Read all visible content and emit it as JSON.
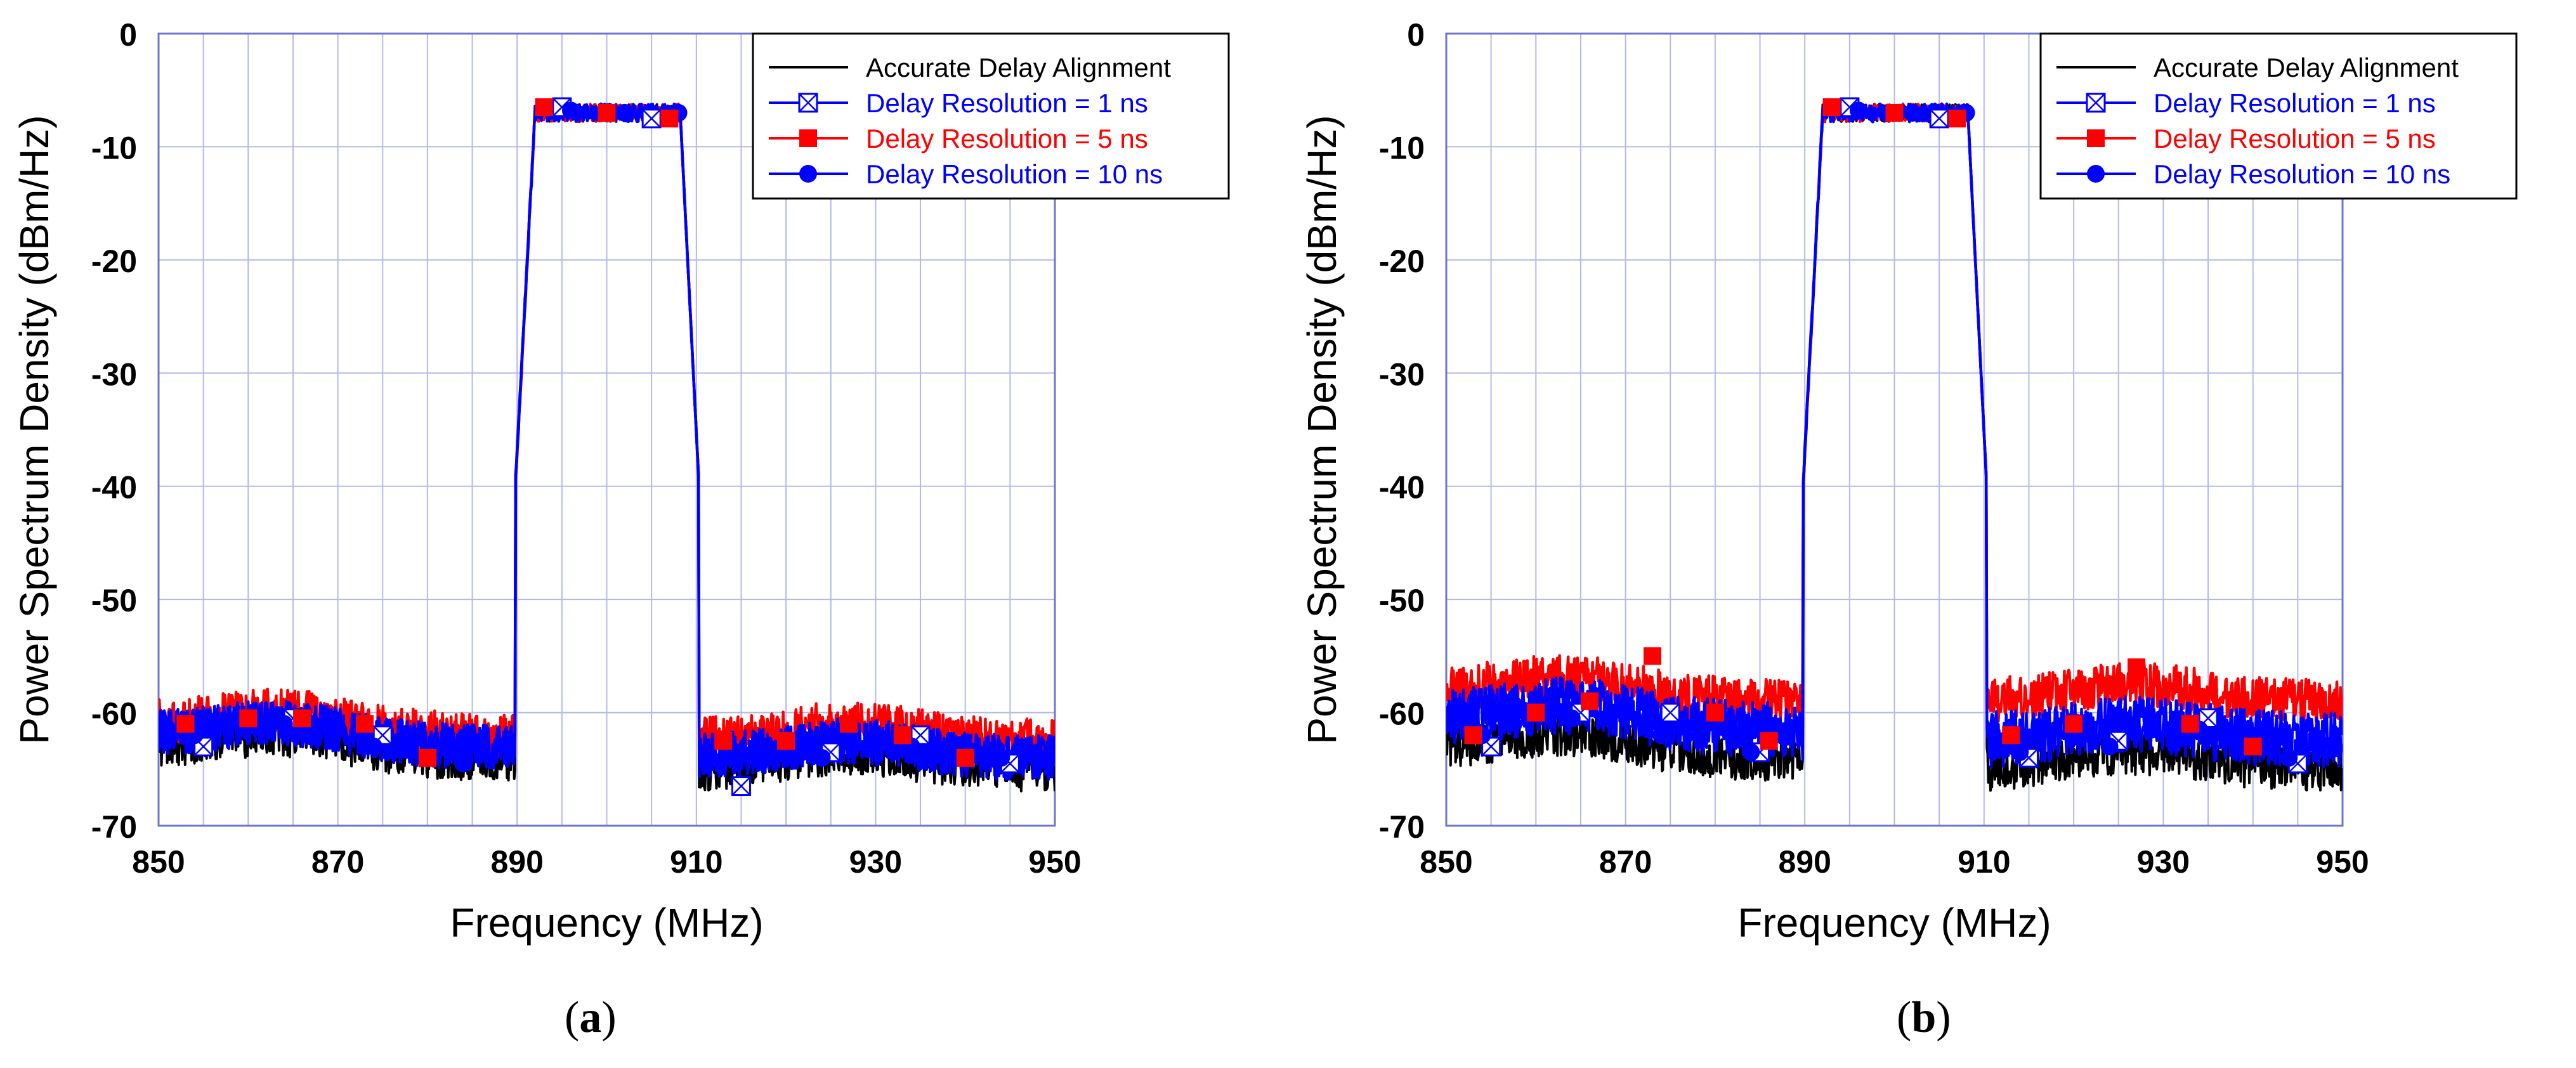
{
  "chart_data": [
    {
      "type": "line",
      "panel_label": "a",
      "xlabel": "Frequency (MHz)",
      "ylabel": "Power Spectrum Density (dBm/Hz)",
      "xlim": [
        850,
        950
      ],
      "ylim": [
        -70,
        0
      ],
      "xticks": [
        850,
        870,
        890,
        910,
        930,
        950
      ],
      "yticks": [
        0,
        -10,
        -20,
        -30,
        -40,
        -50,
        -60,
        -70
      ],
      "grid": true,
      "legend_position": "top-right",
      "passband_mhz": [
        890,
        910
      ],
      "passband_level_dbm_hz": -7,
      "series": [
        {
          "name": "Accurate Delay Alignment",
          "color": "#000000",
          "marker": "none",
          "lower_sideband_dbm_hz": -63,
          "upper_sideband_dbm_hz": -65
        },
        {
          "name": "Delay Resolution = 1 ns",
          "color": "#0000ff",
          "marker": "boxed-x",
          "lower_sideband_dbm_hz": -62,
          "upper_sideband_dbm_hz": -64,
          "markers": [
            [
              855,
              -63
            ],
            [
              865,
              -60.5
            ],
            [
              875,
              -62
            ],
            [
              895,
              -6.5
            ],
            [
              905,
              -7.5
            ],
            [
              915,
              -66.5
            ],
            [
              925,
              -63.5
            ],
            [
              935,
              -62
            ],
            [
              945,
              -64.5
            ]
          ]
        },
        {
          "name": "Delay Resolution = 5 ns",
          "color": "#ff0000",
          "marker": "square",
          "lower_sideband_dbm_hz": -61,
          "upper_sideband_dbm_hz": -62.5,
          "markers": [
            [
              853,
              -61
            ],
            [
              860,
              -60.5
            ],
            [
              866,
              -60.5
            ],
            [
              873,
              -61
            ],
            [
              880,
              -64
            ],
            [
              893,
              -6.5
            ],
            [
              900,
              -7
            ],
            [
              907,
              -7.5
            ],
            [
              913,
              -62.5
            ],
            [
              920,
              -62.5
            ],
            [
              927,
              -61
            ],
            [
              933,
              -62
            ],
            [
              940,
              -64
            ]
          ]
        },
        {
          "name": "Delay Resolution = 10 ns",
          "color": "#0000ff",
          "marker": "circle",
          "lower_sideband_dbm_hz": -62,
          "upper_sideband_dbm_hz": -64,
          "markers": [
            [
              854,
              -62
            ],
            [
              864,
              -61
            ],
            [
              874,
              -63
            ],
            [
              884,
              -64.5
            ],
            [
              896,
              -6.8
            ],
            [
              902,
              -7
            ],
            [
              908,
              -7
            ],
            [
              914,
              -64
            ],
            [
              924,
              -64
            ],
            [
              934,
              -63
            ],
            [
              944,
              -64
            ]
          ]
        }
      ]
    },
    {
      "type": "line",
      "panel_label": "b",
      "xlabel": "Frequency (MHz)",
      "ylabel": "Power Spectrum Density (dBm/Hz)",
      "xlim": [
        850,
        950
      ],
      "ylim": [
        -70,
        0
      ],
      "xticks": [
        850,
        870,
        890,
        910,
        930,
        950
      ],
      "yticks": [
        0,
        -10,
        -20,
        -30,
        -40,
        -50,
        -60,
        -70
      ],
      "grid": true,
      "legend_position": "top-right",
      "passband_mhz": [
        890,
        910
      ],
      "passband_level_dbm_hz": -7,
      "series": [
        {
          "name": "Accurate Delay Alignment",
          "color": "#000000",
          "marker": "none",
          "lower_sideband_dbm_hz": -63,
          "upper_sideband_dbm_hz": -65
        },
        {
          "name": "Delay Resolution = 1 ns",
          "color": "#0000ff",
          "marker": "boxed-x",
          "lower_sideband_dbm_hz": -60,
          "upper_sideband_dbm_hz": -62,
          "markers": [
            [
              855,
              -63
            ],
            [
              865,
              -60
            ],
            [
              875,
              -60
            ],
            [
              885,
              -63.5
            ],
            [
              895,
              -6.5
            ],
            [
              905,
              -7.5
            ],
            [
              915,
              -64
            ],
            [
              925,
              -62.5
            ],
            [
              935,
              -60.5
            ],
            [
              945,
              -64.5
            ]
          ]
        },
        {
          "name": "Delay Resolution = 5 ns",
          "color": "#ff0000",
          "marker": "square",
          "lower_sideband_dbm_hz": -58,
          "upper_sideband_dbm_hz": -59,
          "markers": [
            [
              853,
              -62
            ],
            [
              860,
              -60
            ],
            [
              866,
              -59
            ],
            [
              873,
              -55
            ],
            [
              880,
              -60
            ],
            [
              886,
              -62.5
            ],
            [
              893,
              -6.5
            ],
            [
              900,
              -7
            ],
            [
              907,
              -7.5
            ],
            [
              913,
              -62
            ],
            [
              920,
              -61
            ],
            [
              927,
              -56
            ],
            [
              933,
              -61
            ],
            [
              940,
              -63
            ]
          ]
        },
        {
          "name": "Delay Resolution = 10 ns",
          "color": "#0000ff",
          "marker": "circle",
          "lower_sideband_dbm_hz": -61,
          "upper_sideband_dbm_hz": -63,
          "markers": [
            [
              854,
              -62
            ],
            [
              864,
              -60.5
            ],
            [
              874,
              -62
            ],
            [
              884,
              -63.5
            ],
            [
              896,
              -6.8
            ],
            [
              902,
              -7
            ],
            [
              908,
              -7
            ],
            [
              914,
              -63.5
            ],
            [
              924,
              -63
            ],
            [
              934,
              -61.5
            ],
            [
              944,
              -64
            ]
          ]
        }
      ]
    }
  ],
  "captions": [
    {
      "open": "(",
      "label": "a",
      "close": ")"
    },
    {
      "open": "(",
      "label": "b",
      "close": ")"
    }
  ]
}
